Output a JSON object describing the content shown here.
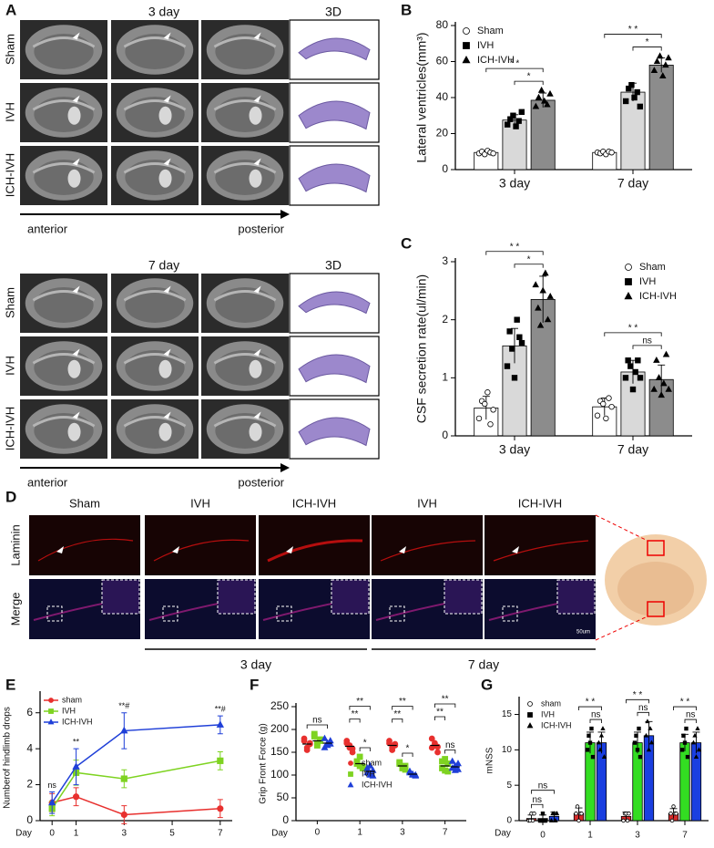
{
  "panels": {
    "A": {
      "label": "A",
      "top": {
        "day": "3 day",
        "col3d": "3D"
      },
      "bottom": {
        "day": "7 day",
        "col3d": "3D"
      },
      "rows": [
        "Sham",
        "IVH",
        "ICH-IVH"
      ],
      "anterior": "anterior",
      "posterior": "posterior"
    },
    "D": {
      "label": "D",
      "columns": [
        "Sham",
        "IVH",
        "ICH-IVH",
        "IVH",
        "ICH-IVH"
      ],
      "rows": [
        "Laminin",
        "Merge"
      ],
      "groups": [
        "3 day",
        "7 day"
      ],
      "scale_bar": "50um"
    }
  },
  "chart_data": [
    {
      "type": "bar",
      "panel": "B",
      "ylabel": "Lateral ventricles(mm³)",
      "categories": [
        "3 day",
        "7 day"
      ],
      "ylim": [
        0,
        80
      ],
      "yticks": [
        0,
        20,
        40,
        60,
        80
      ],
      "legend": "top-left",
      "series": [
        {
          "name": "Sham",
          "color": "#ffffff",
          "marker": "circle",
          "marker_fill": "#ffffff",
          "values": [
            9.5,
            9.5
          ],
          "errors": [
            1,
            0.7
          ],
          "points": [
            [
              9,
              10,
              8.5,
              10.5,
              9.5,
              9
            ],
            [
              9.5,
              9,
              10,
              8.5,
              10,
              9.5
            ]
          ]
        },
        {
          "name": "IVH",
          "color": "#d9d9d9",
          "marker": "square",
          "marker_fill": "#000000",
          "values": [
            27.5,
            43
          ],
          "errors": [
            3,
            5
          ],
          "points": [
            [
              25,
              28,
              30,
              24,
              27,
              32
            ],
            [
              38,
              45,
              47,
              40,
              43,
              35
            ]
          ]
        },
        {
          "name": "ICH-IVH",
          "color": "#8c8c8c",
          "marker": "triangle",
          "marker_fill": "#000000",
          "values": [
            38.5,
            58
          ],
          "errors": [
            4,
            4
          ],
          "points": [
            [
              35,
              40,
              44,
              38,
              36,
              42
            ],
            [
              55,
              60,
              63,
              52,
              58,
              62
            ]
          ]
        }
      ],
      "significance": [
        {
          "category": 0,
          "groups": [
            1,
            2
          ],
          "label": "*"
        },
        {
          "category": 0,
          "groups": [
            0,
            2
          ],
          "label": "* *"
        },
        {
          "category": 1,
          "groups": [
            1,
            2
          ],
          "label": "*"
        },
        {
          "category": 1,
          "groups": [
            0,
            2
          ],
          "label": "* *"
        }
      ]
    },
    {
      "type": "bar",
      "panel": "C",
      "ylabel": "CSF secretion rate(ul/min)",
      "categories": [
        "3 day",
        "7 day"
      ],
      "ylim": [
        0,
        3
      ],
      "yticks": [
        0,
        1,
        2,
        3
      ],
      "legend": "top-right",
      "series": [
        {
          "name": "Sham",
          "color": "#ffffff",
          "marker": "circle",
          "marker_fill": "#ffffff",
          "values": [
            0.48,
            0.5
          ],
          "errors": [
            0.2,
            0.15
          ],
          "points": [
            [
              0.3,
              0.6,
              0.55,
              0.75,
              0.2,
              0.45
            ],
            [
              0.35,
              0.6,
              0.55,
              0.3,
              0.65,
              0.5
            ]
          ]
        },
        {
          "name": "IVH",
          "color": "#d9d9d9",
          "marker": "square",
          "marker_fill": "#000000",
          "values": [
            1.55,
            1.1
          ],
          "errors": [
            0.3,
            0.2
          ],
          "points": [
            [
              1.2,
              1.8,
              1.5,
              1.0,
              2.0,
              1.7,
              1.6
            ],
            [
              1.0,
              1.3,
              1.2,
              0.8,
              1.1,
              1.3,
              1.0
            ]
          ]
        },
        {
          "name": "ICH-IVH",
          "color": "#8c8c8c",
          "marker": "triangle",
          "marker_fill": "#000000",
          "values": [
            2.35,
            0.97
          ],
          "errors": [
            0.4,
            0.25
          ],
          "points": [
            [
              2.6,
              2.2,
              1.9,
              2.5,
              2.8,
              2.0,
              2.4
            ],
            [
              0.8,
              1.3,
              1.0,
              0.7,
              0.9,
              1.4,
              0.8
            ]
          ]
        }
      ],
      "significance": [
        {
          "category": 0,
          "groups": [
            1,
            2
          ],
          "label": "*"
        },
        {
          "category": 0,
          "groups": [
            0,
            2
          ],
          "label": "* *"
        },
        {
          "category": 1,
          "groups": [
            1,
            2
          ],
          "label": "ns"
        },
        {
          "category": 1,
          "groups": [
            0,
            2
          ],
          "label": "* *"
        }
      ]
    },
    {
      "type": "line",
      "panel": "E",
      "ylabel": "Numberof hindlimb drops",
      "xlabel": "Day",
      "x": [
        0,
        1,
        3,
        7
      ],
      "xlim": [
        -0.5,
        7.5
      ],
      "xticks": [
        0,
        1,
        3,
        5,
        7
      ],
      "ylim": [
        0,
        7
      ],
      "yticks": [
        0,
        2,
        4,
        6
      ],
      "legend": "top-left",
      "series": [
        {
          "name": "sham",
          "color": "#e8302e",
          "marker": "circle",
          "values": [
            1,
            1.33,
            0.33,
            0.67
          ],
          "errors": [
            0.5,
            0.5,
            0.5,
            0.5
          ]
        },
        {
          "name": "IVH",
          "color": "#7ed321",
          "marker": "square",
          "values": [
            0.67,
            2.67,
            2.33,
            3.33
          ],
          "errors": [
            0.4,
            0.7,
            0.5,
            0.5
          ]
        },
        {
          "name": "ICH-IVH",
          "color": "#1f3fd8",
          "marker": "triangle",
          "values": [
            1,
            3,
            5,
            5.33
          ],
          "errors": [
            0.6,
            1,
            1,
            0.5
          ]
        }
      ],
      "annotations": [
        {
          "x": 0,
          "label": "ns"
        },
        {
          "x": 1,
          "label": "**"
        },
        {
          "x": 3,
          "label": "**#"
        },
        {
          "x": 7,
          "label": "**#"
        }
      ]
    },
    {
      "type": "dot",
      "panel": "F",
      "ylabel": "Grip Front Force (g)",
      "xlabel": "Day",
      "categories": [
        "0",
        "1",
        "3",
        "7"
      ],
      "ylim": [
        0,
        250
      ],
      "yticks": [
        0,
        50,
        100,
        150,
        200,
        250
      ],
      "legend": "center",
      "series": [
        {
          "name": "sham",
          "color": "#e8302e",
          "marker": "circle",
          "values": [
            168,
            163,
            165,
            165
          ],
          "points": [
            [
              175,
              160,
              168,
              180,
              155,
              170
            ],
            [
              170,
              160,
              150,
              175,
              165,
              158
            ],
            [
              175,
              160,
              165,
              170,
              155,
              168
            ],
            [
              180,
              165,
              150,
              160,
              170,
              162
            ]
          ]
        },
        {
          "name": "IVH",
          "color": "#7ed321",
          "marker": "square",
          "values": [
            175,
            125,
            120,
            120
          ],
          "points": [
            [
              190,
              170,
              175,
              185,
              165,
              178
            ],
            [
              130,
              120,
              115,
              125,
              140,
              118
            ],
            [
              125,
              115,
              120,
              128,
              118,
              112
            ],
            [
              130,
              110,
              125,
              115,
              135,
              108
            ]
          ]
        },
        {
          "name": "ICH-IVH",
          "color": "#1f3fd8",
          "marker": "triangle",
          "values": [
            170,
            108,
            102,
            118
          ],
          "points": [
            [
              180,
              165,
              175,
              160,
              170,
              168
            ],
            [
              115,
              100,
              110,
              105,
              120,
              98
            ],
            [
              105,
              100,
              98,
              108,
              102,
              100
            ],
            [
              130,
              110,
              125,
              115,
              120,
              112
            ]
          ]
        }
      ],
      "significance": [
        {
          "category": 0,
          "groups": [
            0,
            2
          ],
          "label": "ns"
        },
        {
          "category": 1,
          "groups": [
            1,
            2
          ],
          "label": "*"
        },
        {
          "category": 1,
          "groups": [
            0,
            1
          ],
          "label": "**"
        },
        {
          "category": 1,
          "groups": [
            0,
            2
          ],
          "label": "**"
        },
        {
          "category": 2,
          "groups": [
            1,
            2
          ],
          "label": "*"
        },
        {
          "category": 2,
          "groups": [
            0,
            1
          ],
          "label": "**"
        },
        {
          "category": 2,
          "groups": [
            0,
            2
          ],
          "label": "**"
        },
        {
          "category": 3,
          "groups": [
            1,
            2
          ],
          "label": "ns"
        },
        {
          "category": 3,
          "groups": [
            0,
            1
          ],
          "label": "**"
        },
        {
          "category": 3,
          "groups": [
            0,
            2
          ],
          "label": "**"
        }
      ]
    },
    {
      "type": "bar",
      "panel": "G",
      "ylabel": "mNSS",
      "xlabel": "Day",
      "categories": [
        "0",
        "1",
        "3",
        "7"
      ],
      "ylim": [
        0,
        17
      ],
      "yticks": [
        0,
        5,
        10,
        15
      ],
      "legend": "top-left",
      "series": [
        {
          "name": "sham",
          "color": "#d62b2b",
          "marker": "circle",
          "marker_fill": "#ffffff",
          "values": [
            0.3,
            1,
            0.6,
            1
          ],
          "errors": [
            0.5,
            0.8,
            0.6,
            0.7
          ],
          "points": [
            [
              0,
              0,
              1,
              0,
              1
            ],
            [
              1,
              2,
              0,
              1,
              1
            ],
            [
              0,
              1,
              1,
              0,
              1
            ],
            [
              1,
              0,
              2,
              1,
              1
            ]
          ]
        },
        {
          "name": "IVH",
          "color": "#33dd22",
          "marker": "square",
          "marker_fill": "#000000",
          "values": [
            0.3,
            11,
            11,
            11
          ],
          "errors": [
            0.5,
            1.5,
            1.5,
            1.2
          ],
          "points": [
            [
              0,
              0,
              1,
              0,
              0
            ],
            [
              10,
              12,
              11,
              13,
              9
            ],
            [
              11,
              12,
              10,
              13,
              9
            ],
            [
              10,
              12,
              11,
              13,
              9
            ]
          ]
        },
        {
          "name": "ICH-IVH",
          "color": "#1a3fe0",
          "marker": "triangle",
          "marker_fill": "#000000",
          "values": [
            0.6,
            11,
            12,
            11
          ],
          "errors": [
            0.6,
            1.5,
            2,
            1.5
          ],
          "points": [
            [
              0,
              1,
              1,
              0,
              1
            ],
            [
              11,
              10,
              12,
              13,
              9
            ],
            [
              12,
              14,
              10,
              13,
              11
            ],
            [
              11,
              12,
              9,
              13,
              10
            ]
          ]
        }
      ],
      "significance": [
        {
          "category": 0,
          "groups": [
            0,
            1
          ],
          "label": "ns"
        },
        {
          "category": 0,
          "groups": [
            0,
            2
          ],
          "label": "ns"
        },
        {
          "category": 1,
          "groups": [
            1,
            2
          ],
          "label": "ns"
        },
        {
          "category": 1,
          "groups": [
            0,
            2
          ],
          "label": "* *"
        },
        {
          "category": 2,
          "groups": [
            1,
            2
          ],
          "label": "ns"
        },
        {
          "category": 2,
          "groups": [
            0,
            2
          ],
          "label": "* *"
        },
        {
          "category": 3,
          "groups": [
            1,
            2
          ],
          "label": "ns"
        },
        {
          "category": 3,
          "groups": [
            0,
            2
          ],
          "label": "* *"
        }
      ]
    }
  ]
}
